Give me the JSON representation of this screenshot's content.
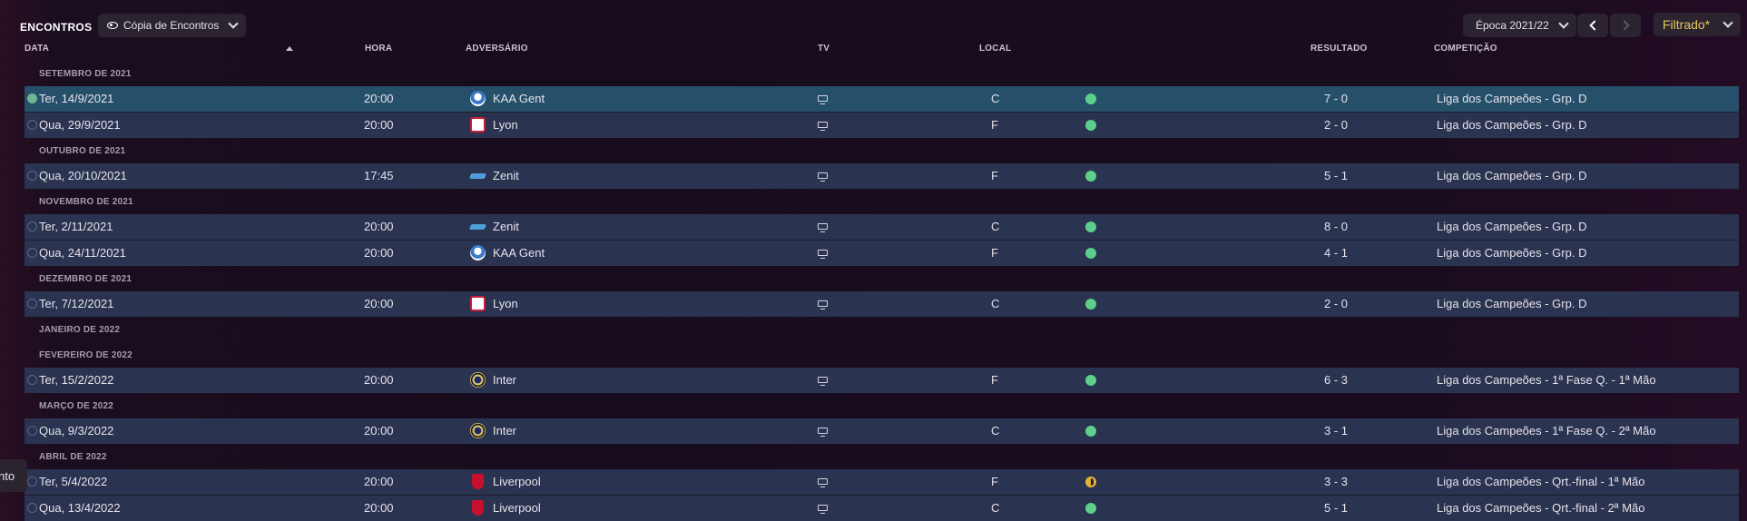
{
  "header": {
    "title": "ENCONTROS",
    "view_label": "Cópia de Encontros",
    "season_label": "Época 2021/22",
    "filter_label": "Filtrado*"
  },
  "columns": {
    "date": "DATA",
    "time": "HORA",
    "opponent": "ADVERSÁRIO",
    "tv": "TV",
    "venue": "LOCAL",
    "result": "RESULTADO",
    "competition": "COMPETIÇÃO"
  },
  "months": {
    "sep21": "SETEMBRO DE 2021",
    "oct21": "OUTUBRO DE 2021",
    "nov21": "NOVEMBRO DE 2021",
    "dec21": "DEZEMBRO DE 2021",
    "jan22": "JANEIRO DE 2022",
    "feb22": "FEVEREIRO DE 2022",
    "mar22": "MARÇO DE 2022",
    "apr22": "ABRIL DE 2022"
  },
  "matches": [
    {
      "date": "Ter, 14/9/2021",
      "time": "20:00",
      "opponent": "KAA Gent",
      "badge": "gent-badge-icon",
      "venue": "C",
      "outcome": "win",
      "result": "7 - 0",
      "competition": "Liga dos Campeões - Grp. D"
    },
    {
      "date": "Qua, 29/9/2021",
      "time": "20:00",
      "opponent": "Lyon",
      "badge": "lyon-badge-icon",
      "venue": "F",
      "outcome": "win",
      "result": "2 - 0",
      "competition": "Liga dos Campeões - Grp. D"
    },
    {
      "date": "Qua, 20/10/2021",
      "time": "17:45",
      "opponent": "Zenit",
      "badge": "zenit-badge-icon",
      "venue": "F",
      "outcome": "win",
      "result": "5 - 1",
      "competition": "Liga dos Campeões - Grp. D"
    },
    {
      "date": "Ter, 2/11/2021",
      "time": "20:00",
      "opponent": "Zenit",
      "badge": "zenit-badge-icon",
      "venue": "C",
      "outcome": "win",
      "result": "8 - 0",
      "competition": "Liga dos Campeões - Grp. D"
    },
    {
      "date": "Qua, 24/11/2021",
      "time": "20:00",
      "opponent": "KAA Gent",
      "badge": "gent-badge-icon",
      "venue": "F",
      "outcome": "win",
      "result": "4 - 1",
      "competition": "Liga dos Campeões - Grp. D"
    },
    {
      "date": "Ter, 7/12/2021",
      "time": "20:00",
      "opponent": "Lyon",
      "badge": "lyon-badge-icon",
      "venue": "C",
      "outcome": "win",
      "result": "2 - 0",
      "competition": "Liga dos Campeões - Grp. D"
    },
    {
      "date": "Ter, 15/2/2022",
      "time": "20:00",
      "opponent": "Inter",
      "badge": "inter-badge-icon",
      "venue": "F",
      "outcome": "win",
      "result": "6 - 3",
      "competition": "Liga dos Campeões - 1ª Fase Q. - 1ª Mão"
    },
    {
      "date": "Qua, 9/3/2022",
      "time": "20:00",
      "opponent": "Inter",
      "badge": "inter-badge-icon",
      "venue": "C",
      "outcome": "win",
      "result": "3 - 1",
      "competition": "Liga dos Campeões - 1ª Fase Q. - 2ª Mão"
    },
    {
      "date": "Ter, 5/4/2022",
      "time": "20:00",
      "opponent": "Liverpool",
      "badge": "liverpool-badge-icon",
      "venue": "F",
      "outcome": "draw",
      "result": "3 - 3",
      "competition": "Liga dos Campeões - Qrt.-final - 1ª Mão"
    },
    {
      "date": "Qua, 13/4/2022",
      "time": "20:00",
      "opponent": "Liverpool",
      "badge": "liverpool-badge-icon",
      "venue": "C",
      "outcome": "win",
      "result": "5 - 1",
      "competition": "Liga dos Campeões - Qrt.-final - 2ª Mão"
    }
  ],
  "side_tab": {
    "label": "nto"
  },
  "colors": {
    "win": "#5ccf8c",
    "draw": "#e2b23a",
    "row": "#2a3350",
    "selected_row": "#26506a",
    "filter": "#e8c65a"
  }
}
